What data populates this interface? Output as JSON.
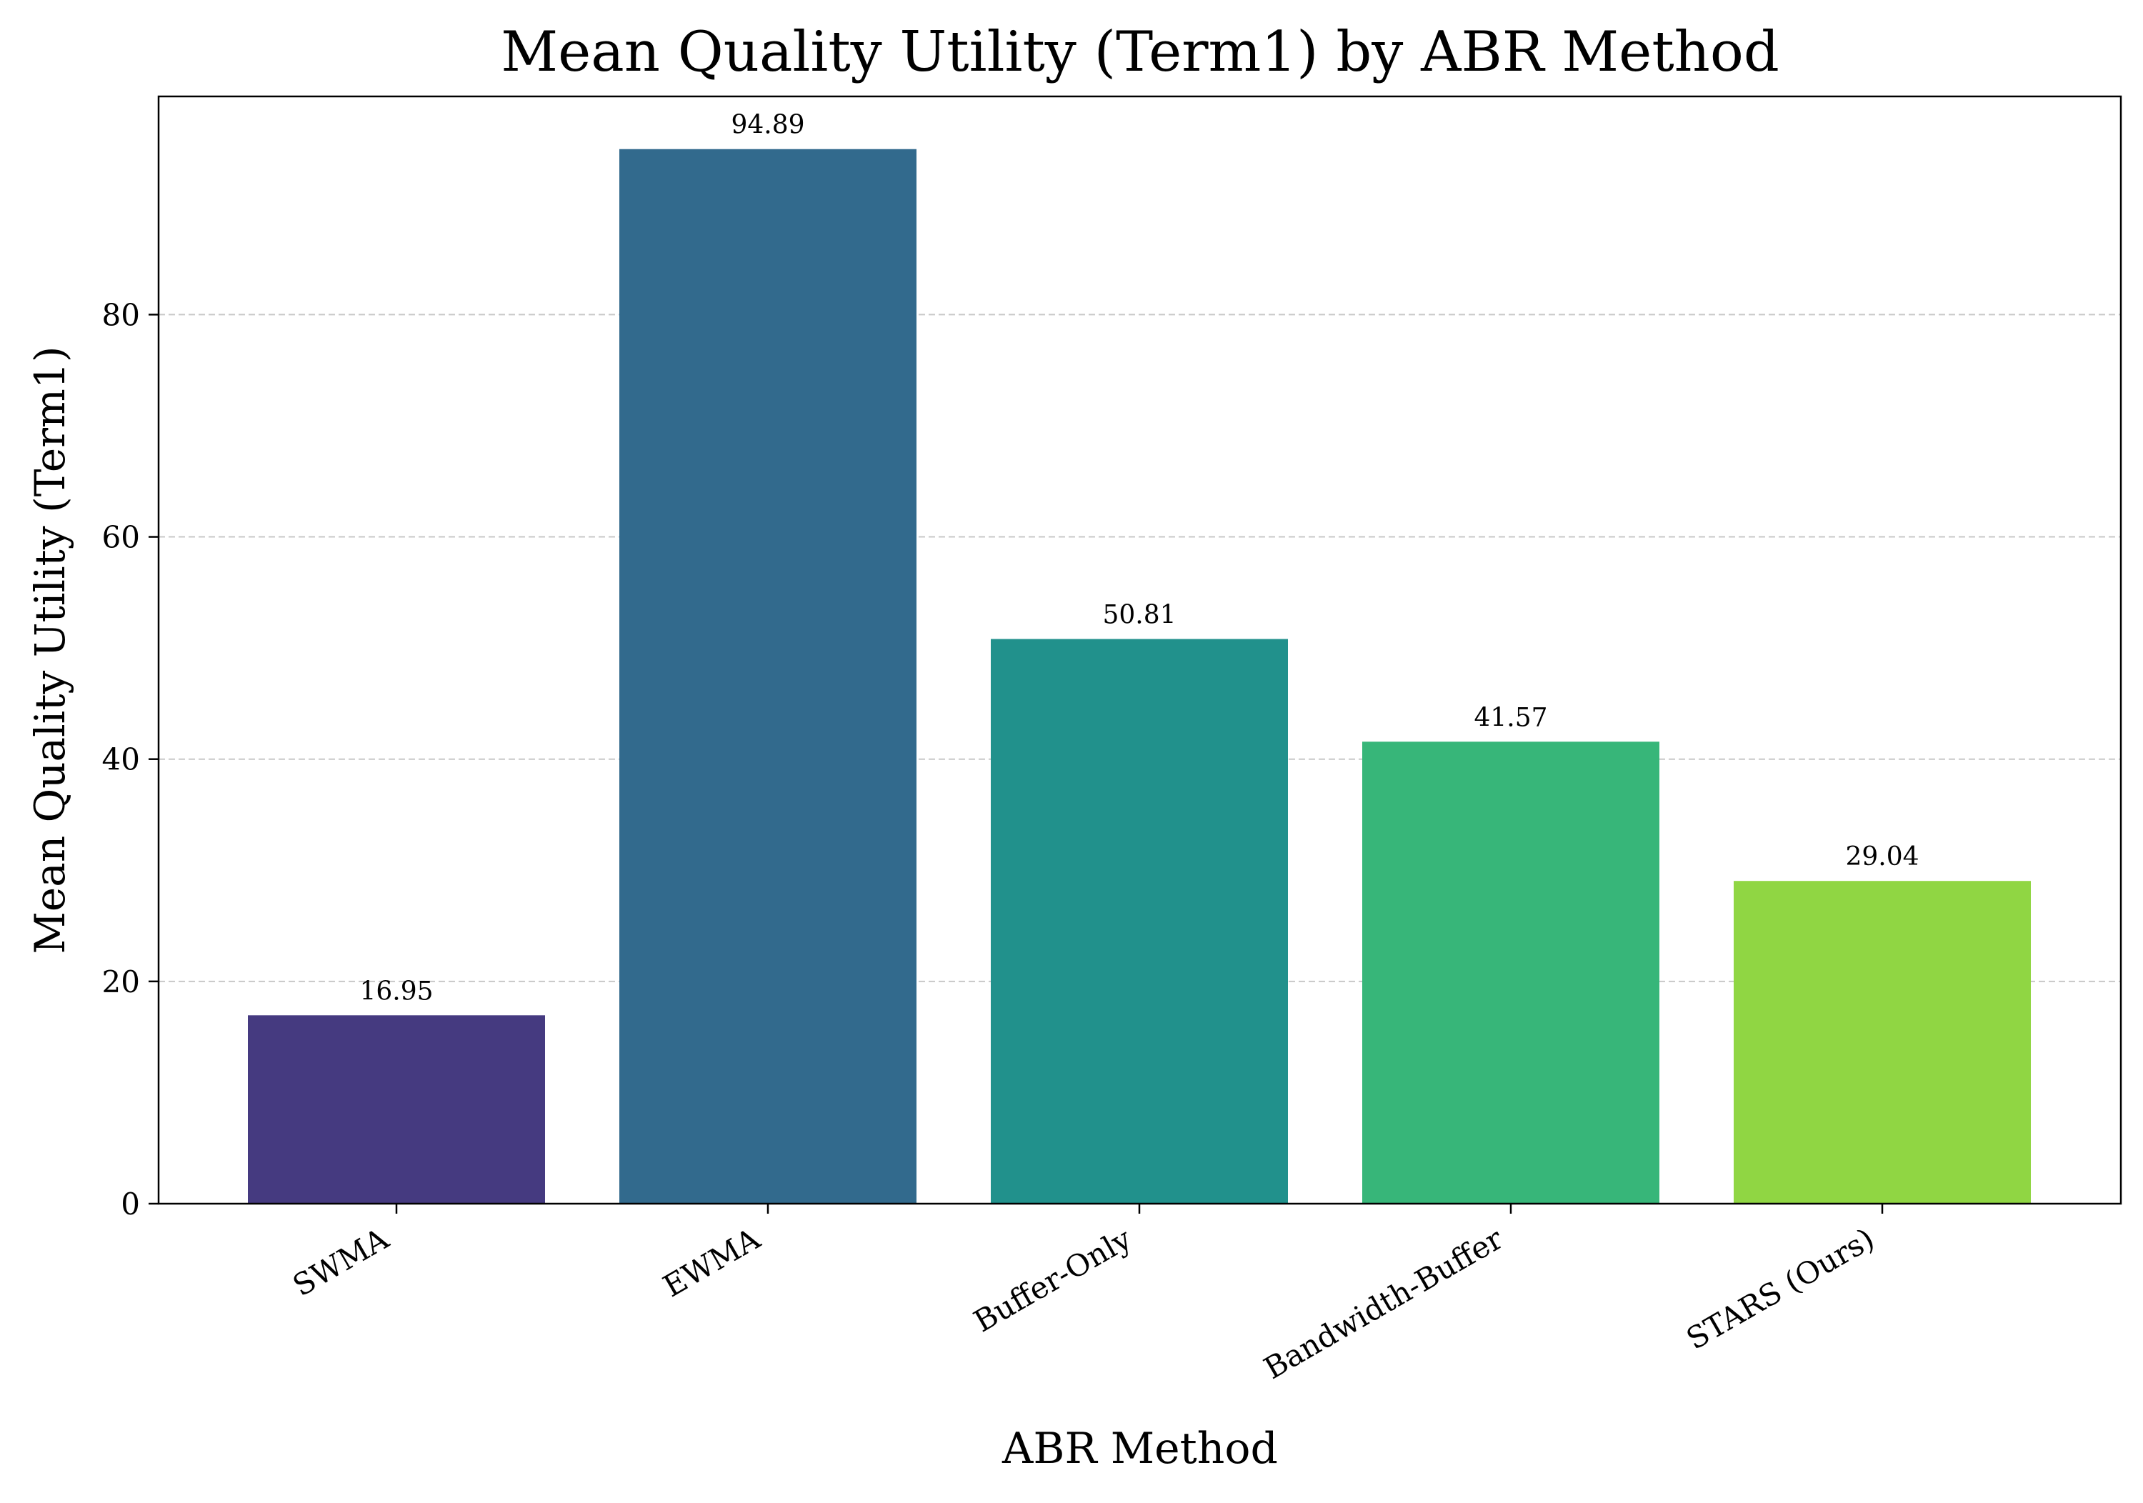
{
  "chart_data": {
    "type": "bar",
    "title": "Mean Quality Utility (Term1) by ABR Method",
    "xlabel": "ABR Method",
    "ylabel": "Mean Quality Utility (Term1)",
    "categories": [
      "SWMA",
      "EWMA",
      "Buffer-Only",
      "Bandwidth-Buffer",
      "STARS (Ours)"
    ],
    "values": [
      16.95,
      94.89,
      50.81,
      41.57,
      29.04
    ],
    "data_labels": [
      "16.95",
      "94.89",
      "50.81",
      "41.57",
      "29.04"
    ],
    "colors": [
      "#453a80",
      "#326a8d",
      "#21918c",
      "#37b679",
      "#90d643"
    ],
    "ylim": [
      0,
      99.63
    ],
    "yticks": [
      0,
      20,
      40,
      60,
      80
    ],
    "grid": "y-dashed",
    "legend": "none"
  }
}
